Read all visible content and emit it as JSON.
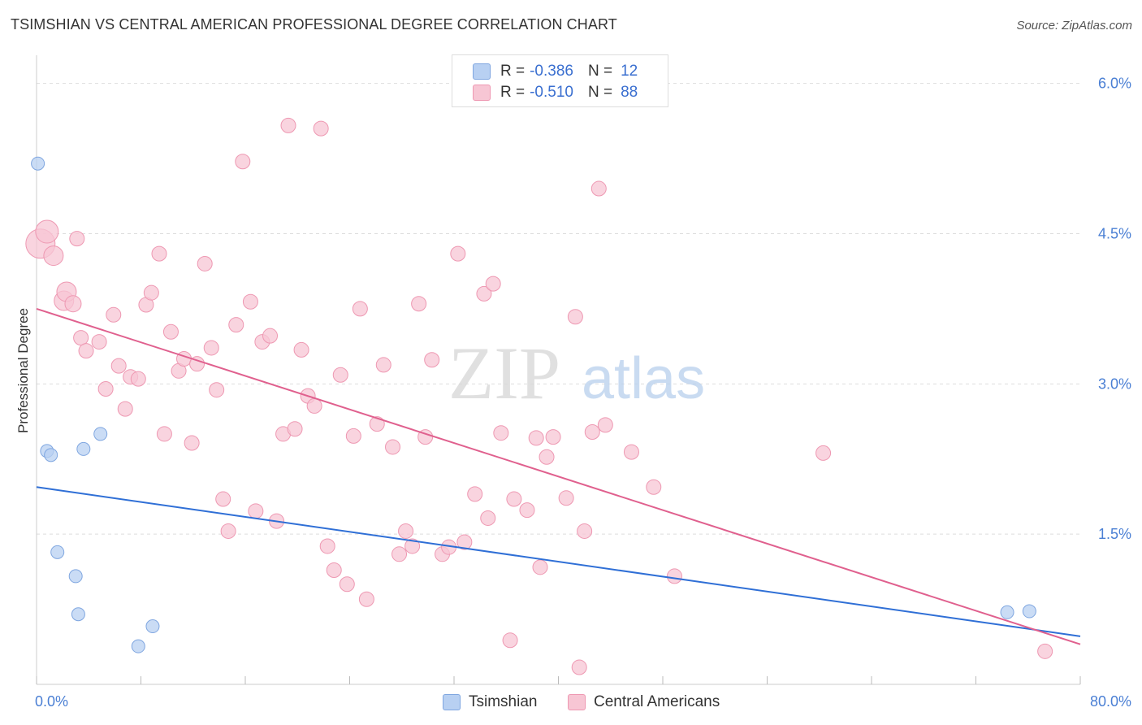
{
  "title": "TSIMSHIAN VS CENTRAL AMERICAN PROFESSIONAL DEGREE CORRELATION CHART",
  "source": "Source: ZipAtlas.com",
  "legend": {
    "rows": [
      {
        "r_label": "R =",
        "r_value": "-0.386",
        "n_label": "N =",
        "n_value": "12"
      },
      {
        "r_label": "R =",
        "r_value": "-0.510",
        "n_label": "N =",
        "n_value": "88"
      }
    ]
  },
  "watermark": {
    "zip": "ZIP",
    "atlas": "atlas"
  },
  "colors": {
    "blue_fill": "#b8d0f2",
    "blue_stroke": "#7fa6e0",
    "blue_line": "#2f6fd6",
    "pink_fill": "#f7c6d4",
    "pink_stroke": "#ee98b2",
    "pink_line": "#e0608e",
    "tick_label": "#4a7fd4",
    "grid": "#dddddd"
  },
  "chart_data": {
    "type": "scatter",
    "title": "TSIMSHIAN VS CENTRAL AMERICAN PROFESSIONAL DEGREE CORRELATION CHART",
    "xlabel": "",
    "ylabel": "Professional Degree",
    "xlim": [
      0,
      80
    ],
    "ylim": [
      0,
      6.2
    ],
    "x_tick_labels": [
      "0.0%",
      "80.0%"
    ],
    "y_ticks": [
      1.5,
      3.0,
      4.5,
      6.0
    ],
    "y_tick_labels": [
      "1.5%",
      "3.0%",
      "4.5%",
      "6.0%"
    ],
    "grid": true,
    "legend_position": "top-center",
    "series": [
      {
        "name": "Tsimshian",
        "color": "#b8d0f2",
        "r": -0.386,
        "n": 12,
        "trend": [
          [
            0,
            1.97
          ],
          [
            80,
            0.48
          ]
        ],
        "points": [
          [
            0.1,
            5.2,
            8
          ],
          [
            0.8,
            2.33,
            8
          ],
          [
            1.1,
            2.29,
            8
          ],
          [
            1.6,
            1.32,
            8
          ],
          [
            3.0,
            1.08,
            8
          ],
          [
            3.2,
            0.7,
            8
          ],
          [
            3.6,
            2.35,
            8
          ],
          [
            4.9,
            2.5,
            8
          ],
          [
            7.8,
            0.38,
            8
          ],
          [
            8.9,
            0.58,
            8
          ],
          [
            74.4,
            0.72,
            8
          ],
          [
            76.1,
            0.73,
            8
          ]
        ]
      },
      {
        "name": "Central Americans",
        "color": "#f7c6d4",
        "r": -0.51,
        "n": 88,
        "trend": [
          [
            0,
            3.75
          ],
          [
            80,
            0.4
          ]
        ],
        "points": [
          [
            0.3,
            4.4,
            18
          ],
          [
            0.8,
            4.52,
            14
          ],
          [
            1.3,
            4.28,
            12
          ],
          [
            2.1,
            3.83,
            12
          ],
          [
            2.3,
            3.92,
            12
          ],
          [
            2.8,
            3.8,
            10
          ],
          [
            3.1,
            4.45,
            9
          ],
          [
            3.4,
            3.46,
            9
          ],
          [
            3.8,
            3.33,
            9
          ],
          [
            4.8,
            3.42,
            9
          ],
          [
            5.3,
            2.95,
            9
          ],
          [
            5.9,
            3.69,
            9
          ],
          [
            6.3,
            3.18,
            9
          ],
          [
            6.8,
            2.75,
            9
          ],
          [
            7.2,
            3.07,
            9
          ],
          [
            7.8,
            3.05,
            9
          ],
          [
            8.4,
            3.79,
            9
          ],
          [
            8.8,
            3.91,
            9
          ],
          [
            9.4,
            4.3,
            9
          ],
          [
            9.8,
            2.5,
            9
          ],
          [
            10.3,
            3.52,
            9
          ],
          [
            10.9,
            3.13,
            9
          ],
          [
            11.3,
            3.25,
            9
          ],
          [
            11.9,
            2.41,
            9
          ],
          [
            12.3,
            3.2,
            9
          ],
          [
            12.9,
            4.2,
            9
          ],
          [
            13.4,
            3.36,
            9
          ],
          [
            13.8,
            2.94,
            9
          ],
          [
            14.3,
            1.85,
            9
          ],
          [
            14.7,
            1.53,
            9
          ],
          [
            15.3,
            3.59,
            9
          ],
          [
            15.8,
            5.22,
            9
          ],
          [
            16.4,
            3.82,
            9
          ],
          [
            16.8,
            1.73,
            9
          ],
          [
            17.3,
            3.42,
            9
          ],
          [
            17.9,
            3.48,
            9
          ],
          [
            18.4,
            1.63,
            9
          ],
          [
            18.9,
            2.5,
            9
          ],
          [
            19.3,
            5.58,
            9
          ],
          [
            19.8,
            2.55,
            9
          ],
          [
            20.3,
            3.34,
            9
          ],
          [
            20.8,
            2.88,
            9
          ],
          [
            21.3,
            2.78,
            9
          ],
          [
            21.8,
            5.55,
            9
          ],
          [
            22.3,
            1.38,
            9
          ],
          [
            22.8,
            1.14,
            9
          ],
          [
            23.3,
            3.09,
            9
          ],
          [
            23.8,
            1.0,
            9
          ],
          [
            24.3,
            2.48,
            9
          ],
          [
            24.8,
            3.75,
            9
          ],
          [
            25.3,
            0.85,
            9
          ],
          [
            26.1,
            2.6,
            9
          ],
          [
            26.6,
            3.19,
            9
          ],
          [
            27.3,
            2.37,
            9
          ],
          [
            27.8,
            1.3,
            9
          ],
          [
            28.3,
            1.53,
            9
          ],
          [
            28.8,
            1.38,
            9
          ],
          [
            29.3,
            3.8,
            9
          ],
          [
            29.8,
            2.47,
            9
          ],
          [
            30.3,
            3.24,
            9
          ],
          [
            31.1,
            1.3,
            9
          ],
          [
            31.6,
            1.37,
            9
          ],
          [
            32.3,
            4.3,
            9
          ],
          [
            32.8,
            1.42,
            9
          ],
          [
            33.6,
            1.9,
            9
          ],
          [
            34.3,
            3.9,
            9
          ],
          [
            34.6,
            1.66,
            9
          ],
          [
            35.0,
            4.0,
            9
          ],
          [
            35.6,
            2.51,
            9
          ],
          [
            36.3,
            0.44,
            9
          ],
          [
            36.6,
            1.85,
            9
          ],
          [
            37.6,
            1.74,
            9
          ],
          [
            38.3,
            2.46,
            9
          ],
          [
            38.6,
            1.17,
            9
          ],
          [
            39.1,
            2.27,
            9
          ],
          [
            39.6,
            2.47,
            9
          ],
          [
            40.6,
            1.86,
            9
          ],
          [
            41.3,
            3.67,
            9
          ],
          [
            41.6,
            0.17,
            9
          ],
          [
            42.0,
            1.53,
            9
          ],
          [
            42.6,
            2.52,
            9
          ],
          [
            43.1,
            4.95,
            9
          ],
          [
            43.6,
            2.59,
            9
          ],
          [
            45.6,
            2.32,
            9
          ],
          [
            47.3,
            1.97,
            9
          ],
          [
            48.9,
            1.08,
            9
          ],
          [
            60.3,
            2.31,
            9
          ],
          [
            77.3,
            0.33,
            9
          ]
        ]
      }
    ]
  }
}
